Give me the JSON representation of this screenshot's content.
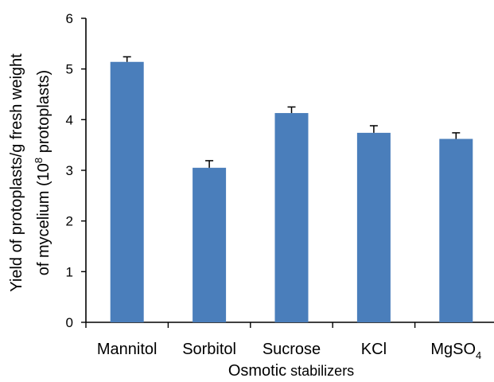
{
  "chart_data": {
    "type": "bar",
    "categories": [
      "Mannitol",
      "Sorbitol",
      "Sucrose",
      "KCl",
      "MgSO4"
    ],
    "category_labels": [
      {
        "base": "Mannitol",
        "sub": ""
      },
      {
        "base": "Sorbitol",
        "sub": ""
      },
      {
        "base": "Sucrose",
        "sub": ""
      },
      {
        "base": "KCl",
        "sub": ""
      },
      {
        "base": "MgSO",
        "sub": "4"
      }
    ],
    "values": [
      5.14,
      3.05,
      4.13,
      3.74,
      3.62
    ],
    "errors": [
      0.1,
      0.14,
      0.12,
      0.14,
      0.12
    ],
    "ylim": [
      0,
      6
    ],
    "yticks": [
      0,
      1,
      2,
      3,
      4,
      5,
      6
    ],
    "xlabel": {
      "part1": "Osmotic",
      "part2": " stabilizers"
    },
    "ylabel": {
      "line1": "Yield of protoplasts/g fresh weight",
      "line2_a": "of mycelium  (10",
      "line2_sup": "8",
      "line2_b": "   protoplasts)"
    },
    "bar_color": "#4a7ebb",
    "error_color": "#000000",
    "grid": false,
    "legend": "none"
  }
}
